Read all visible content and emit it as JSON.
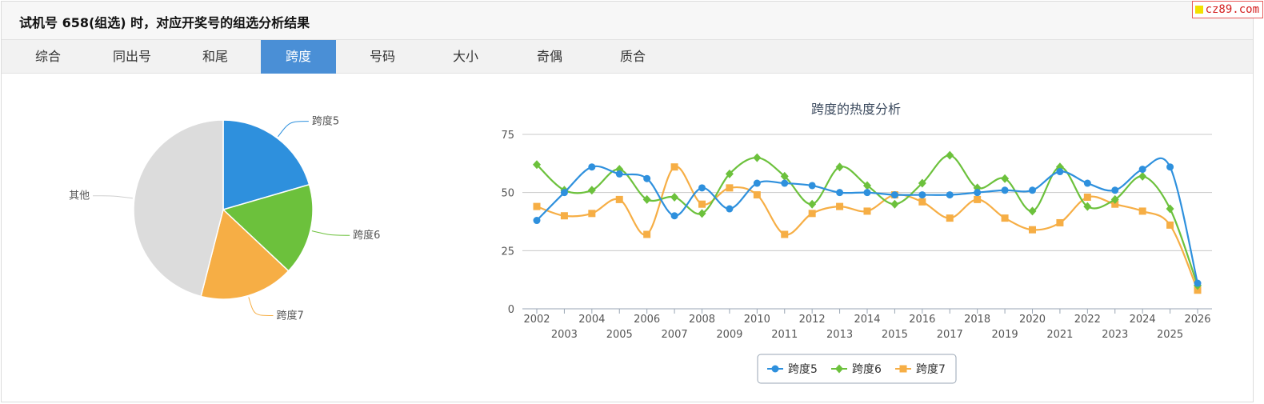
{
  "header": {
    "title": "试机号 658(组选) 时，对应开奖号的组选分析结果"
  },
  "watermark": {
    "text": "cz89.com",
    "color": "#d42020"
  },
  "tabs": [
    {
      "label": "综合",
      "active": false
    },
    {
      "label": "同出号",
      "active": false
    },
    {
      "label": "和尾",
      "active": false
    },
    {
      "label": "跨度",
      "active": true
    },
    {
      "label": "号码",
      "active": false
    },
    {
      "label": "大小",
      "active": false
    },
    {
      "label": "奇偶",
      "active": false
    },
    {
      "label": "质合",
      "active": false
    }
  ],
  "colors": {
    "accent": "#4a8fd6",
    "span5": "#2e90dd",
    "span6": "#6cc13c",
    "span7": "#f6ae45",
    "other": "#dcdcdc"
  },
  "chart_data": [
    {
      "type": "pie",
      "slices": [
        {
          "label": "跨度5",
          "value": 20.5,
          "color": "#2e90dd"
        },
        {
          "label": "跨度6",
          "value": 16.5,
          "color": "#6cc13c"
        },
        {
          "label": "跨度7",
          "value": 17.0,
          "color": "#f6ae45"
        },
        {
          "label": "其他",
          "value": 46.0,
          "color": "#dcdcdc"
        }
      ]
    },
    {
      "type": "line",
      "title": "跨度的热度分析",
      "x": [
        "2002",
        "2003",
        "2004",
        "2005",
        "2006",
        "2007",
        "2008",
        "2009",
        "2010",
        "2011",
        "2012",
        "2013",
        "2014",
        "2015",
        "2016",
        "2017",
        "2018",
        "2019",
        "2020",
        "2021",
        "2022",
        "2023",
        "2024",
        "2025",
        "2026"
      ],
      "ylim": [
        0,
        75
      ],
      "yticks": [
        0,
        25,
        50,
        75
      ],
      "grid": true,
      "legend": "bottom",
      "series": [
        {
          "name": "跨度5",
          "marker": "circle",
          "color": "#2e90dd",
          "values": [
            38,
            50,
            61,
            58,
            56,
            40,
            52,
            43,
            54,
            54,
            53,
            50,
            50,
            49,
            49,
            49,
            50,
            51,
            51,
            59,
            54,
            51,
            60,
            61,
            11
          ]
        },
        {
          "name": "跨度6",
          "marker": "diamond",
          "color": "#6cc13c",
          "values": [
            62,
            51,
            51,
            60,
            47,
            48,
            41,
            58,
            65,
            57,
            45,
            61,
            53,
            45,
            54,
            66,
            52,
            56,
            42,
            61,
            44,
            47,
            57,
            43,
            10
          ]
        },
        {
          "name": "跨度7",
          "marker": "square",
          "color": "#f6ae45",
          "values": [
            44,
            40,
            41,
            47,
            32,
            61,
            45,
            52,
            49,
            32,
            41,
            44,
            42,
            49,
            46,
            39,
            47,
            39,
            34,
            37,
            48,
            45,
            42,
            36,
            8
          ]
        }
      ]
    }
  ]
}
